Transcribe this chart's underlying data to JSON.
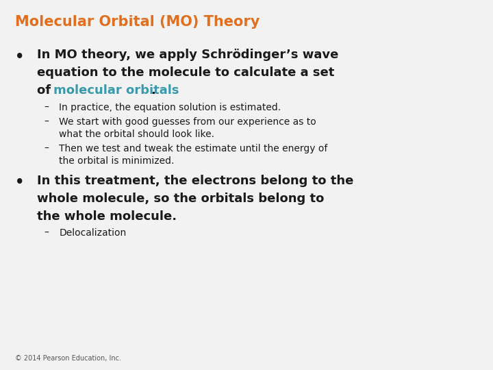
{
  "title": "Molecular Orbital (MO) Theory",
  "title_color": "#E07020",
  "background_color": "#F2F2F2",
  "text_color": "#1a1a1a",
  "teal_color": "#3A9AAA",
  "bullet1_line1": "In MO theory, we apply Schrödinger’s wave",
  "bullet1_line2": "equation to the molecule to calculate a set",
  "bullet1_line3_black1": "of ",
  "bullet1_line3_teal": "molecular orbitals",
  "bullet1_line3_black2": ".",
  "sub1": "In practice, the equation solution is estimated.",
  "sub2_line1": "We start with good guesses from our experience as to",
  "sub2_line2": "what the orbital should look like.",
  "sub3_line1": "Then we test and tweak the estimate until the energy of",
  "sub3_line2": "the orbital is minimized.",
  "bullet2_line1": "In this treatment, the electrons belong to the",
  "bullet2_line2": "whole molecule, so the orbitals belong to",
  "bullet2_line3": "the whole molecule.",
  "sub4": "Delocalization",
  "footer": "© 2014 Pearson Education, Inc.",
  "title_fontsize": 15,
  "bullet_fontsize": 13,
  "sub_fontsize": 10,
  "footer_fontsize": 7
}
